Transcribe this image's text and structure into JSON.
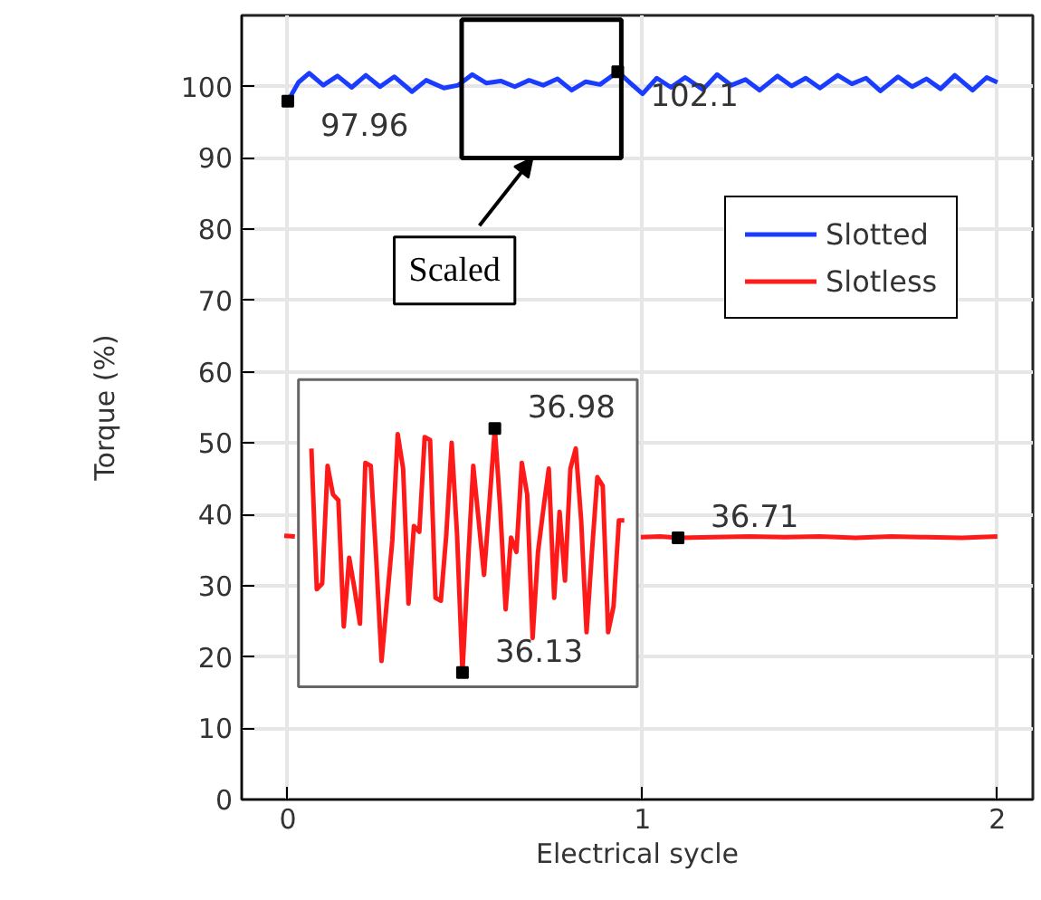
{
  "chart_data": [
    {
      "type": "line",
      "xlabel": "Electrical sycle",
      "ylabel": "Torque (%)",
      "xlim": [
        -0.13,
        2.1
      ],
      "ylim": [
        0,
        110
      ],
      "xticks": [
        0,
        1,
        2
      ],
      "yticks": [
        0,
        10,
        20,
        30,
        40,
        50,
        60,
        70,
        80,
        90,
        100
      ],
      "grid": true,
      "legend": "top right",
      "series": [
        {
          "name": "Slotted",
          "color": "#1a3cff",
          "x": [
            0,
            0.03,
            0.06,
            0.1,
            0.14,
            0.18,
            0.22,
            0.26,
            0.3,
            0.35,
            0.39,
            0.44,
            0.48,
            0.52,
            0.56,
            0.6,
            0.64,
            0.68,
            0.72,
            0.76,
            0.8,
            0.84,
            0.88,
            0.93,
            0.97,
            1.0,
            1.04,
            1.08,
            1.12,
            1.17,
            1.21,
            1.25,
            1.29,
            1.33,
            1.38,
            1.42,
            1.46,
            1.5,
            1.55,
            1.59,
            1.63,
            1.67,
            1.72,
            1.76,
            1.8,
            1.84,
            1.88,
            1.93,
            1.97,
            2.0
          ],
          "values": [
            97.96,
            100.6,
            101.9,
            100.2,
            101.5,
            99.9,
            101.6,
            100,
            101.4,
            99.3,
            100.9,
            99.8,
            100.2,
            101.7,
            100.5,
            100.8,
            100,
            100.9,
            100.2,
            101.1,
            99.5,
            100.7,
            100.3,
            102.1,
            100.3,
            99,
            101.2,
            99.9,
            101.3,
            99.6,
            101.7,
            100.2,
            101,
            99.5,
            101.5,
            100.1,
            101.2,
            99.8,
            101.6,
            100.4,
            101.2,
            99.4,
            101.4,
            100,
            101.1,
            99.7,
            101.6,
            99.5,
            101.3,
            100.6
          ]
        },
        {
          "name": "Slotless",
          "color": "#ff1a1a",
          "x": [
            -0.01,
            0.02,
            0.5,
            0.995,
            1.05,
            1.1,
            1.2,
            1.3,
            1.4,
            1.5,
            1.6,
            1.7,
            1.8,
            1.9,
            2.0
          ],
          "values": [
            37,
            36.9,
            null,
            36.8,
            36.9,
            36.71,
            36.8,
            36.9,
            36.8,
            36.9,
            36.7,
            36.9,
            36.8,
            36.7,
            36.9
          ]
        }
      ],
      "annotations": [
        {
          "text": "97.96",
          "x": 0,
          "y": 97.96
        },
        {
          "text": "102.1",
          "x": 0.93,
          "y": 102.1
        },
        {
          "text": "36.71",
          "x": 1.1,
          "y": 36.71
        },
        "Scaled"
      ]
    },
    {
      "type": "line",
      "categories": [
        null,
        null,
        null,
        null,
        null,
        null,
        null,
        null,
        null,
        null,
        null,
        null,
        null,
        null,
        null,
        null,
        null,
        null,
        null,
        null,
        null,
        null,
        null,
        null,
        null,
        null,
        null,
        null,
        null,
        null,
        null,
        null,
        null,
        null,
        null,
        null,
        null,
        null,
        null,
        null,
        null,
        null,
        null,
        null,
        null,
        null,
        null,
        null,
        null,
        null,
        null,
        null,
        null,
        null,
        null,
        null,
        null,
        null,
        null
      ],
      "ylim": [
        36.08,
        37.15
      ],
      "series": [
        {
          "color": "#ff1a1a",
          "values": [
            36.91,
            36.42,
            36.44,
            36.85,
            36.75,
            36.73,
            36.29,
            36.53,
            36.42,
            36.3,
            36.86,
            36.85,
            36.53,
            36.17,
            36.38,
            36.59,
            36.96,
            36.84,
            36.37,
            36.64,
            36.62,
            36.95,
            36.94,
            36.39,
            36.38,
            36.61,
            36.93,
            36.61,
            36.13,
            36.5,
            36.85,
            36.66,
            36.47,
            36.72,
            36.98,
            36.7,
            36.35,
            36.6,
            36.55,
            36.86,
            36.75,
            36.25,
            36.55,
            36.7,
            36.84,
            36.39,
            36.69,
            36.45,
            36.84,
            36.91,
            36.66,
            36.27,
            36.55,
            36.81,
            36.78,
            36.27,
            36.36,
            36.66,
            36.66
          ],
          "value_labels": [
            null,
            null,
            null,
            null,
            null,
            null,
            null,
            null,
            null,
            null,
            null,
            null,
            null,
            null,
            null,
            null,
            null,
            null,
            null,
            null,
            null,
            null,
            null,
            null,
            null,
            null,
            null,
            null,
            "36.13",
            null,
            null,
            null,
            null,
            null,
            "36.98",
            null,
            null,
            null,
            null,
            null,
            null,
            null,
            null,
            null,
            null,
            null,
            null,
            null,
            null,
            null,
            null,
            null,
            null,
            null,
            null,
            null,
            null,
            null,
            null
          ]
        }
      ]
    }
  ]
}
